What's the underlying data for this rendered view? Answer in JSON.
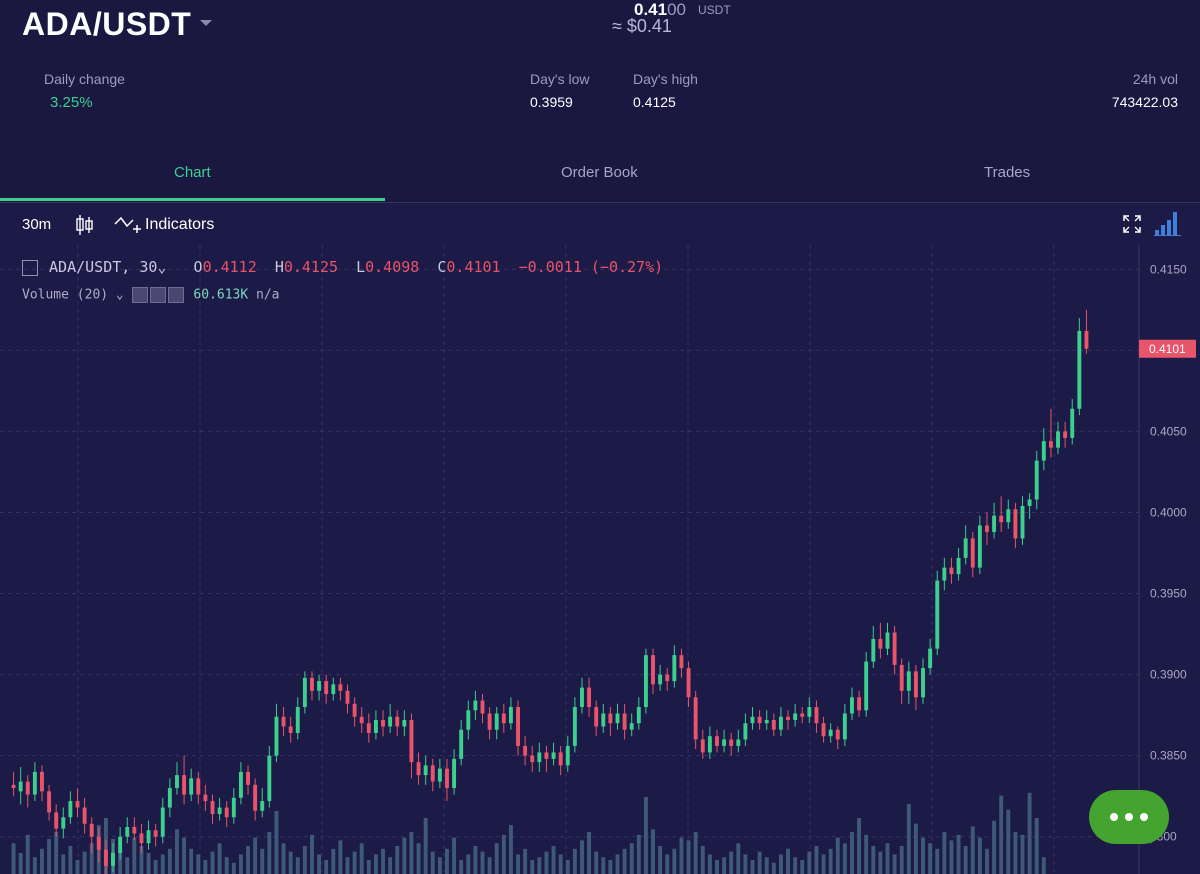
{
  "header": {
    "pair": "ADA/USDT",
    "price_bright": "0.41",
    "price_dim": "00",
    "price_unit": "USDT",
    "price_fiat": "≈ $0.41",
    "daily_change_label": "Daily change",
    "daily_change_value": "3.25%",
    "day_low_label": "Day's low",
    "day_low_value": "0.3959",
    "day_high_label": "Day's high",
    "day_high_value": "0.4125",
    "vol_label": "24h vol",
    "vol_value": "743422.03"
  },
  "tabs": [
    {
      "label": "Chart",
      "active": true
    },
    {
      "label": "Order Book",
      "active": false
    },
    {
      "label": "Trades",
      "active": false
    }
  ],
  "toolbar": {
    "interval": "30m",
    "indicators_label": "Indicators",
    "icons": [
      "candlestick-icon",
      "indicators-icon",
      "fullscreen-icon",
      "chart-settings-icon"
    ]
  },
  "legend": {
    "symbol": "ADA/USDT, 30",
    "open_label": "O",
    "open": "0.4112",
    "high_label": "H",
    "high": "0.4125",
    "low_label": "L",
    "low": "0.4098",
    "close_label": "C",
    "close": "0.4101",
    "change": "−0.0011 (−0.27%)",
    "volume_label": "Volume (20)",
    "volume_value": "60.613K",
    "volume_na": "n/a"
  },
  "colors": {
    "up": "#3ccf8e",
    "down": "#e8546a",
    "volume": "#3e5a78",
    "background": "#1c1a46",
    "accent": "#3ccf8e",
    "chat_button": "#45a42f"
  },
  "chart_data": {
    "type": "candlestick",
    "interval": "30m",
    "y_ticks": [
      "0.4150",
      "0.4050",
      "0.4000",
      "0.3950",
      "0.3900",
      "0.3850",
      "3800"
    ],
    "ylim": [
      0.3777,
      0.4165
    ],
    "last_price_label": "0.4101",
    "grid": true,
    "candles": [
      [
        0.3832,
        0.383,
        0.384,
        0.3825
      ],
      [
        0.3828,
        0.3834,
        0.3843,
        0.382
      ],
      [
        0.3834,
        0.3826,
        0.3838,
        0.3818
      ],
      [
        0.3826,
        0.384,
        0.3846,
        0.3822
      ],
      [
        0.384,
        0.3828,
        0.3844,
        0.3822
      ],
      [
        0.3828,
        0.3815,
        0.3832,
        0.381
      ],
      [
        0.3815,
        0.3805,
        0.382,
        0.38
      ],
      [
        0.3805,
        0.3812,
        0.3818,
        0.3799
      ],
      [
        0.3812,
        0.3822,
        0.3828,
        0.3808
      ],
      [
        0.3822,
        0.3818,
        0.383,
        0.3812
      ],
      [
        0.3818,
        0.3808,
        0.3824,
        0.3802
      ],
      [
        0.3808,
        0.38,
        0.3812,
        0.379
      ],
      [
        0.38,
        0.3792,
        0.3806,
        0.3784
      ],
      [
        0.3792,
        0.3782,
        0.3798,
        0.3776
      ],
      [
        0.3782,
        0.379,
        0.3796,
        0.3778
      ],
      [
        0.379,
        0.38,
        0.3806,
        0.3786
      ],
      [
        0.38,
        0.3806,
        0.3812,
        0.3796
      ],
      [
        0.3806,
        0.3802,
        0.3812,
        0.3798
      ],
      [
        0.3802,
        0.3796,
        0.3808,
        0.379
      ],
      [
        0.3796,
        0.3804,
        0.381,
        0.3792
      ],
      [
        0.3804,
        0.38,
        0.3808,
        0.3794
      ],
      [
        0.38,
        0.3818,
        0.3824,
        0.3796
      ],
      [
        0.3818,
        0.383,
        0.3836,
        0.3812
      ],
      [
        0.383,
        0.3838,
        0.3846,
        0.3826
      ],
      [
        0.3838,
        0.3826,
        0.385,
        0.382
      ],
      [
        0.3826,
        0.3836,
        0.3842,
        0.3822
      ],
      [
        0.3836,
        0.3826,
        0.384,
        0.382
      ],
      [
        0.3826,
        0.3822,
        0.3832,
        0.3816
      ],
      [
        0.3822,
        0.3814,
        0.3826,
        0.3808
      ],
      [
        0.3814,
        0.3818,
        0.3824,
        0.381
      ],
      [
        0.3818,
        0.3812,
        0.3822,
        0.3806
      ],
      [
        0.3812,
        0.3824,
        0.383,
        0.3808
      ],
      [
        0.3824,
        0.384,
        0.3846,
        0.382
      ],
      [
        0.384,
        0.3832,
        0.3844,
        0.3826
      ],
      [
        0.3832,
        0.3816,
        0.3836,
        0.381
      ],
      [
        0.3816,
        0.3822,
        0.383,
        0.3812
      ],
      [
        0.3822,
        0.385,
        0.3856,
        0.3818
      ],
      [
        0.385,
        0.3874,
        0.3882,
        0.3846
      ],
      [
        0.3874,
        0.3868,
        0.388,
        0.3862
      ],
      [
        0.3868,
        0.3864,
        0.3874,
        0.3858
      ],
      [
        0.3864,
        0.388,
        0.3886,
        0.386
      ],
      [
        0.388,
        0.3898,
        0.3902,
        0.3876
      ],
      [
        0.3898,
        0.389,
        0.3902,
        0.3884
      ],
      [
        0.389,
        0.3896,
        0.39,
        0.3884
      ],
      [
        0.3896,
        0.3888,
        0.39,
        0.3882
      ],
      [
        0.3888,
        0.3894,
        0.3898,
        0.3884
      ],
      [
        0.3894,
        0.389,
        0.3898,
        0.3884
      ],
      [
        0.389,
        0.3882,
        0.3894,
        0.3876
      ],
      [
        0.3882,
        0.3874,
        0.3886,
        0.3868
      ],
      [
        0.3874,
        0.387,
        0.388,
        0.3864
      ],
      [
        0.387,
        0.3864,
        0.3876,
        0.3858
      ],
      [
        0.3864,
        0.3872,
        0.3878,
        0.386
      ],
      [
        0.3872,
        0.3868,
        0.3878,
        0.3862
      ],
      [
        0.3868,
        0.3874,
        0.3882,
        0.3864
      ],
      [
        0.3874,
        0.3868,
        0.3878,
        0.3862
      ],
      [
        0.3868,
        0.3872,
        0.3878,
        0.3862
      ],
      [
        0.3872,
        0.3846,
        0.3876,
        0.3836
      ],
      [
        0.3846,
        0.3838,
        0.3852,
        0.3832
      ],
      [
        0.3838,
        0.3844,
        0.385,
        0.3832
      ],
      [
        0.3844,
        0.3834,
        0.3848,
        0.3828
      ],
      [
        0.3834,
        0.3842,
        0.3848,
        0.383
      ],
      [
        0.3842,
        0.383,
        0.3848,
        0.3822
      ],
      [
        0.383,
        0.3848,
        0.3854,
        0.3826
      ],
      [
        0.3848,
        0.3866,
        0.3872,
        0.3844
      ],
      [
        0.3866,
        0.3878,
        0.3884,
        0.386
      ],
      [
        0.3878,
        0.3884,
        0.389,
        0.3872
      ],
      [
        0.3884,
        0.3876,
        0.3888,
        0.387
      ],
      [
        0.3876,
        0.3866,
        0.388,
        0.386
      ],
      [
        0.3866,
        0.3876,
        0.388,
        0.386
      ],
      [
        0.3876,
        0.387,
        0.3882,
        0.3864
      ],
      [
        0.387,
        0.388,
        0.3886,
        0.3866
      ],
      [
        0.388,
        0.3856,
        0.3884,
        0.385
      ],
      [
        0.3856,
        0.385,
        0.3862,
        0.3844
      ],
      [
        0.385,
        0.3846,
        0.3856,
        0.384
      ],
      [
        0.3846,
        0.3852,
        0.3858,
        0.384
      ],
      [
        0.3852,
        0.3848,
        0.3856,
        0.384
      ],
      [
        0.3848,
        0.3852,
        0.3858,
        0.3844
      ],
      [
        0.3852,
        0.3844,
        0.3856,
        0.3838
      ],
      [
        0.3844,
        0.3856,
        0.3862,
        0.384
      ],
      [
        0.3856,
        0.388,
        0.3886,
        0.3852
      ],
      [
        0.388,
        0.3892,
        0.3898,
        0.3876
      ],
      [
        0.3892,
        0.388,
        0.3898,
        0.3874
      ],
      [
        0.388,
        0.3868,
        0.3884,
        0.3862
      ],
      [
        0.3868,
        0.3876,
        0.3882,
        0.3864
      ],
      [
        0.3876,
        0.387,
        0.388,
        0.3862
      ],
      [
        0.387,
        0.3876,
        0.3882,
        0.3866
      ],
      [
        0.3876,
        0.3866,
        0.3882,
        0.386
      ],
      [
        0.3866,
        0.387,
        0.3876,
        0.3862
      ],
      [
        0.387,
        0.388,
        0.3886,
        0.3866
      ],
      [
        0.388,
        0.3912,
        0.3916,
        0.3876
      ],
      [
        0.3912,
        0.3894,
        0.3916,
        0.3888
      ],
      [
        0.3894,
        0.39,
        0.3906,
        0.389
      ],
      [
        0.39,
        0.3896,
        0.3904,
        0.389
      ],
      [
        0.3896,
        0.3912,
        0.3918,
        0.3892
      ],
      [
        0.3912,
        0.3904,
        0.3916,
        0.3898
      ],
      [
        0.3904,
        0.3886,
        0.3908,
        0.388
      ],
      [
        0.3886,
        0.386,
        0.389,
        0.3854
      ],
      [
        0.386,
        0.3852,
        0.3866,
        0.3848
      ],
      [
        0.3852,
        0.3862,
        0.3868,
        0.3848
      ],
      [
        0.3862,
        0.3856,
        0.3866,
        0.3852
      ],
      [
        0.3856,
        0.386,
        0.3866,
        0.3852
      ],
      [
        0.386,
        0.3856,
        0.3864,
        0.385
      ],
      [
        0.3856,
        0.386,
        0.3866,
        0.3852
      ],
      [
        0.386,
        0.387,
        0.3876,
        0.3856
      ],
      [
        0.387,
        0.3874,
        0.388,
        0.3866
      ],
      [
        0.3874,
        0.387,
        0.3878,
        0.3866
      ],
      [
        0.387,
        0.3872,
        0.3878,
        0.3866
      ],
      [
        0.3872,
        0.3866,
        0.3876,
        0.3862
      ],
      [
        0.3866,
        0.3874,
        0.388,
        0.3862
      ],
      [
        0.3874,
        0.3872,
        0.3878,
        0.3866
      ],
      [
        0.3872,
        0.3876,
        0.3882,
        0.3868
      ],
      [
        0.3876,
        0.3874,
        0.388,
        0.387
      ],
      [
        0.3874,
        0.388,
        0.3886,
        0.387
      ],
      [
        0.388,
        0.387,
        0.3884,
        0.3864
      ],
      [
        0.387,
        0.3862,
        0.3874,
        0.3858
      ],
      [
        0.3862,
        0.3866,
        0.387,
        0.3858
      ],
      [
        0.3866,
        0.386,
        0.3868,
        0.3854
      ],
      [
        0.386,
        0.3876,
        0.3882,
        0.3856
      ],
      [
        0.3876,
        0.3886,
        0.3892,
        0.3872
      ],
      [
        0.3886,
        0.3878,
        0.389,
        0.3874
      ],
      [
        0.3878,
        0.3908,
        0.3914,
        0.3874
      ],
      [
        0.3908,
        0.3922,
        0.393,
        0.3904
      ],
      [
        0.3922,
        0.3916,
        0.3932,
        0.391
      ],
      [
        0.3916,
        0.3926,
        0.3932,
        0.3912
      ],
      [
        0.3926,
        0.3906,
        0.393,
        0.39
      ],
      [
        0.3906,
        0.389,
        0.391,
        0.3882
      ],
      [
        0.389,
        0.3902,
        0.3908,
        0.3882
      ],
      [
        0.3902,
        0.3886,
        0.3906,
        0.3878
      ],
      [
        0.3886,
        0.3904,
        0.391,
        0.3882
      ],
      [
        0.3904,
        0.3916,
        0.3922,
        0.39
      ],
      [
        0.3916,
        0.3958,
        0.3964,
        0.3912
      ],
      [
        0.3958,
        0.3966,
        0.3972,
        0.3952
      ],
      [
        0.3966,
        0.3962,
        0.3972,
        0.3956
      ],
      [
        0.3962,
        0.3972,
        0.3978,
        0.3958
      ],
      [
        0.3972,
        0.3984,
        0.3992,
        0.3968
      ],
      [
        0.3984,
        0.3966,
        0.3988,
        0.396
      ],
      [
        0.3966,
        0.3992,
        0.3998,
        0.3962
      ],
      [
        0.3992,
        0.3988,
        0.4,
        0.398
      ],
      [
        0.3988,
        0.3998,
        0.4006,
        0.3984
      ],
      [
        0.3998,
        0.3994,
        0.401,
        0.3988
      ],
      [
        0.3994,
        0.4002,
        0.4008,
        0.399
      ],
      [
        0.4002,
        0.3984,
        0.4006,
        0.3978
      ],
      [
        0.3984,
        0.4004,
        0.401,
        0.398
      ],
      [
        0.4004,
        0.4008,
        0.4012,
        0.3996
      ],
      [
        0.4008,
        0.4032,
        0.4038,
        0.4002
      ],
      [
        0.4032,
        0.4044,
        0.4052,
        0.4026
      ],
      [
        0.4044,
        0.404,
        0.4064,
        0.4034
      ],
      [
        0.404,
        0.405,
        0.4056,
        0.4036
      ],
      [
        0.405,
        0.4046,
        0.4056,
        0.404
      ],
      [
        0.4046,
        0.4064,
        0.407,
        0.4042
      ],
      [
        0.4064,
        0.4112,
        0.412,
        0.406
      ],
      [
        0.4112,
        0.4101,
        0.4125,
        0.4098
      ]
    ],
    "volumes": [
      0.22,
      0.15,
      0.28,
      0.12,
      0.18,
      0.25,
      0.3,
      0.14,
      0.2,
      0.1,
      0.16,
      0.22,
      0.35,
      0.4,
      0.25,
      0.18,
      0.12,
      0.26,
      0.2,
      0.15,
      0.1,
      0.14,
      0.18,
      0.32,
      0.26,
      0.18,
      0.14,
      0.1,
      0.16,
      0.22,
      0.12,
      0.08,
      0.14,
      0.2,
      0.26,
      0.18,
      0.3,
      0.45,
      0.22,
      0.16,
      0.12,
      0.2,
      0.28,
      0.14,
      0.1,
      0.18,
      0.24,
      0.12,
      0.16,
      0.22,
      0.1,
      0.14,
      0.18,
      0.12,
      0.2,
      0.26,
      0.3,
      0.22,
      0.4,
      0.16,
      0.12,
      0.18,
      0.26,
      0.1,
      0.14,
      0.2,
      0.16,
      0.12,
      0.22,
      0.28,
      0.35,
      0.14,
      0.18,
      0.1,
      0.12,
      0.16,
      0.2,
      0.14,
      0.1,
      0.18,
      0.24,
      0.3,
      0.16,
      0.12,
      0.1,
      0.14,
      0.18,
      0.22,
      0.28,
      0.55,
      0.32,
      0.2,
      0.14,
      0.18,
      0.26,
      0.24,
      0.3,
      0.2,
      0.14,
      0.1,
      0.12,
      0.16,
      0.22,
      0.14,
      0.1,
      0.16,
      0.12,
      0.08,
      0.14,
      0.18,
      0.12,
      0.1,
      0.16,
      0.2,
      0.14,
      0.18,
      0.26,
      0.22,
      0.3,
      0.4,
      0.28,
      0.2,
      0.16,
      0.22,
      0.14,
      0.2,
      0.5,
      0.36,
      0.26,
      0.22,
      0.18,
      0.3,
      0.24,
      0.28,
      0.2,
      0.34,
      0.26,
      0.18,
      0.38,
      0.56,
      0.46,
      0.3,
      0.28,
      0.58,
      0.4,
      0.12
    ]
  }
}
